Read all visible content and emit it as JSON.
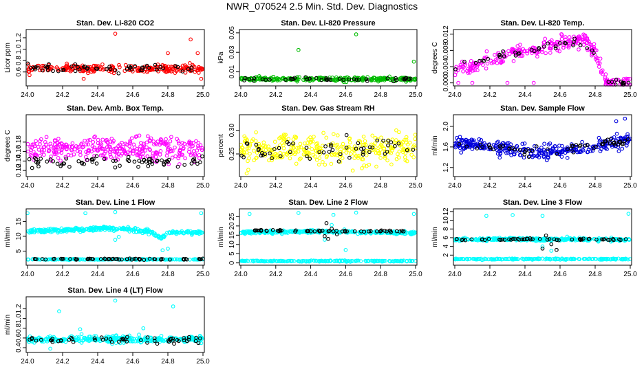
{
  "title": "NWR_070524  2.5 Min. Std. Dev. Diagnostics",
  "chart_data": [
    {
      "type": "scatter",
      "title": "Stan. Dev. Li-820 CO2",
      "ylabel": "Licor ppm",
      "xlabel": "",
      "xlim": [
        24.0,
        25.0
      ],
      "ylim": [
        0.38,
        1.32
      ],
      "xticks": [
        "24.0",
        "24.2",
        "24.4",
        "24.6",
        "24.8",
        "25.0"
      ],
      "yticks": [
        "0.6",
        "0.8",
        "1.0",
        "1.2"
      ],
      "series": [
        {
          "name": "main",
          "color": "#ff0000",
          "base": [
            [
              0,
              0.66
            ],
            [
              1,
              0.66
            ]
          ],
          "spread": 0.06,
          "n": 240,
          "outliers": [
            [
              24.5,
              1.27
            ],
            [
              24.8,
              0.93
            ],
            [
              24.93,
              1.17
            ],
            [
              24.97,
              0.93
            ],
            [
              24.99,
              0.48
            ],
            [
              24.32,
              0.48
            ]
          ]
        },
        {
          "name": "black",
          "color": "#000000",
          "base": [
            [
              0,
              0.66
            ],
            [
              1,
              0.66
            ]
          ],
          "spread": 0.06,
          "n": 55,
          "outliers": []
        }
      ]
    },
    {
      "type": "scatter",
      "title": "Stan. Dev. Li-820 Pressure",
      "ylabel": "kPa",
      "xlabel": "",
      "xlim": [
        24.0,
        25.0
      ],
      "ylim": [
        -0.003,
        0.052
      ],
      "xticks": [
        "24.0",
        "24.2",
        "24.4",
        "24.6",
        "24.8",
        "25.0"
      ],
      "yticks": [
        "0.01",
        "0.03",
        "0.05"
      ],
      "series": [
        {
          "name": "main",
          "color": "#00bb00",
          "base": [
            [
              0,
              0.0025
            ],
            [
              1,
              0.0025
            ]
          ],
          "spread": 0.0018,
          "n": 260,
          "outliers": [
            [
              24.33,
              0.0325
            ],
            [
              24.66,
              0.0485
            ],
            [
              24.99,
              0.0205
            ]
          ]
        },
        {
          "name": "black",
          "color": "#000000",
          "base": [
            [
              0,
              0.0025
            ],
            [
              1,
              0.0025
            ]
          ],
          "spread": 0.0015,
          "n": 45,
          "outliers": []
        }
      ]
    },
    {
      "type": "scatter",
      "title": "Stan. Dev. Li-820 Temp.",
      "ylabel": "degrees C",
      "xlabel": "",
      "xlim": [
        24.0,
        25.0
      ],
      "ylim": [
        -0.0004,
        0.0128
      ],
      "xticks": [
        "24.0",
        "24.2",
        "24.4",
        "24.6",
        "24.8",
        "25.0"
      ],
      "yticks": [
        "0.000",
        "0.004",
        "0.008",
        "0.012"
      ],
      "series": [
        {
          "name": "main",
          "color": "#ff00ff",
          "base": [
            [
              0,
              0.0035
            ],
            [
              0.15,
              0.0045
            ],
            [
              0.3,
              0.0068
            ],
            [
              0.5,
              0.0085
            ],
            [
              0.7,
              0.0108
            ],
            [
              0.76,
              0.0102
            ],
            [
              0.82,
              0.0055
            ],
            [
              0.86,
              0.0
            ],
            [
              1,
              0.0
            ]
          ],
          "spread": 0.0016,
          "n": 280,
          "outliers": [
            [
              24.02,
              0.0
            ],
            [
              24.1,
              0.0
            ],
            [
              24.3,
              0.0
            ],
            [
              24.45,
              0.0
            ]
          ]
        },
        {
          "name": "black",
          "color": "#000000",
          "base": [
            [
              0,
              0.0038
            ],
            [
              0.3,
              0.007
            ],
            [
              0.5,
              0.0085
            ],
            [
              0.7,
              0.0105
            ],
            [
              0.8,
              0.007
            ],
            [
              0.86,
              0.0
            ],
            [
              1,
              0.0
            ]
          ],
          "spread": 0.001,
          "n": 45,
          "outliers": []
        }
      ]
    },
    {
      "type": "scatter",
      "title": "Stan. Dev. Amb. Box Temp.",
      "ylabel": "degrees C",
      "xlabel": "",
      "xlim": [
        24.0,
        25.0
      ],
      "ylim": [
        0.11,
        0.235
      ],
      "xticks": [
        "24.0",
        "24.2",
        "24.4",
        "24.6",
        "24.8",
        "25.0"
      ],
      "yticks": [
        "0.12",
        "0.14",
        "0.16",
        "0.18"
      ],
      "series": [
        {
          "name": "main",
          "color": "#ff00ff",
          "base": [
            [
              0,
              0.165
            ],
            [
              1,
              0.165
            ]
          ],
          "spread": 0.022,
          "n": 320,
          "outliers": []
        },
        {
          "name": "black",
          "color": "#000000",
          "base": [
            [
              0,
              0.138
            ],
            [
              1,
              0.138
            ]
          ],
          "spread": 0.01,
          "n": 70,
          "outliers": []
        }
      ]
    },
    {
      "type": "scatter",
      "title": "Stan. Dev. Gas Stream RH",
      "ylabel": "percent",
      "xlabel": "",
      "xlim": [
        24.0,
        25.0
      ],
      "ylim": [
        0.205,
        0.33
      ],
      "xticks": [
        "24.0",
        "24.2",
        "24.4",
        "24.6",
        "24.8",
        "25.0"
      ],
      "yticks": [
        "0.25",
        "0.30"
      ],
      "series": [
        {
          "name": "main",
          "color": "#ffff00",
          "base": [
            [
              0,
              0.26
            ],
            [
              1,
              0.26
            ]
          ],
          "spread": 0.028,
          "n": 320,
          "outliers": []
        },
        {
          "name": "black",
          "color": "#000000",
          "base": [
            [
              0,
              0.26
            ],
            [
              1,
              0.26
            ]
          ],
          "spread": 0.02,
          "n": 55,
          "outliers": []
        }
      ]
    },
    {
      "type": "scatter",
      "title": "Stan. Dev. Sample Flow",
      "ylabel": "ml/min",
      "xlabel": "",
      "xlim": [
        24.0,
        25.0
      ],
      "ylim": [
        1.05,
        2.2
      ],
      "xticks": [
        "24.0",
        "24.2",
        "24.4",
        "24.6",
        "24.8",
        "25.0"
      ],
      "yticks": [
        "1.2",
        "1.6",
        "2.0"
      ],
      "series": [
        {
          "name": "main",
          "color": "#0000dd",
          "base": [
            [
              0,
              1.68
            ],
            [
              0.3,
              1.55
            ],
            [
              0.5,
              1.48
            ],
            [
              0.7,
              1.55
            ],
            [
              1,
              1.72
            ]
          ],
          "spread": 0.13,
          "n": 320,
          "outliers": [
            [
              24.92,
              2.1
            ],
            [
              24.97,
              2.15
            ]
          ]
        },
        {
          "name": "black",
          "color": "#000000",
          "base": [
            [
              0,
              1.65
            ],
            [
              0.5,
              1.5
            ],
            [
              1,
              1.72
            ]
          ],
          "spread": 0.07,
          "n": 55,
          "outliers": []
        }
      ]
    },
    {
      "type": "scatter",
      "title": "Stan. Dev. Line 1 Flow",
      "ylabel": "ml/min",
      "xlabel": "",
      "xlim": [
        24.0,
        25.0
      ],
      "ylim": [
        0.7,
        18.8
      ],
      "xticks": [
        "24.0",
        "24.2",
        "24.4",
        "24.6",
        "24.8",
        "25.0"
      ],
      "yticks": [
        "5",
        "10",
        "15"
      ],
      "series": [
        {
          "name": "main",
          "color": "#00ffff",
          "base": [
            [
              0,
              11.8
            ],
            [
              0.3,
              12.2
            ],
            [
              0.45,
              12.8
            ],
            [
              0.55,
              12.3
            ],
            [
              0.7,
              11.6
            ],
            [
              0.76,
              9.3
            ],
            [
              0.8,
              11.3
            ],
            [
              1,
              11.3
            ]
          ],
          "spread": 0.55,
          "n": 340,
          "outliers": [
            [
              24.0,
              17.8
            ],
            [
              24.33,
              17.8
            ],
            [
              24.5,
              18.2
            ],
            [
              24.99,
              17.8
            ],
            [
              24.5,
              8.8
            ],
            [
              24.52,
              9.8
            ],
            [
              24.77,
              5.3
            ],
            [
              24.8,
              5.8
            ]
          ]
        },
        {
          "name": "low",
          "color": "#00ffff",
          "base": [
            [
              0,
              2.2
            ],
            [
              1,
              2.2
            ]
          ],
          "spread": 0.12,
          "n": 200,
          "outliers": []
        },
        {
          "name": "black",
          "color": "#000000",
          "base": [
            [
              0,
              2.3
            ],
            [
              1,
              2.3
            ]
          ],
          "spread": 0.15,
          "n": 60,
          "outliers": []
        }
      ]
    },
    {
      "type": "scatter",
      "title": "Stan. Dev. Line 2 Flow",
      "ylabel": "ml/min",
      "xlabel": "",
      "xlim": [
        24.0,
        25.0
      ],
      "ylim": [
        -0.5,
        28.5
      ],
      "xticks": [
        "24.0",
        "24.2",
        "24.4",
        "24.6",
        "24.8",
        "25.0"
      ],
      "yticks": [
        "0",
        "5",
        "10",
        "15",
        "20",
        "25"
      ],
      "series": [
        {
          "name": "main",
          "color": "#00ffff",
          "base": [
            [
              0,
              16.5
            ],
            [
              0.45,
              17.0
            ],
            [
              0.55,
              16.8
            ],
            [
              1,
              16.2
            ]
          ],
          "spread": 0.7,
          "n": 320,
          "outliers": [
            [
              24.05,
              26.5
            ],
            [
              24.33,
              27.0
            ],
            [
              24.53,
              26.0
            ],
            [
              24.66,
              27.2
            ],
            [
              24.99,
              26.5
            ],
            [
              24.6,
              7.0
            ],
            [
              24.48,
              12.5
            ],
            [
              24.52,
              20.5
            ]
          ]
        },
        {
          "name": "low",
          "color": "#00ffff",
          "base": [
            [
              0,
              1.0
            ],
            [
              1,
              1.0
            ]
          ],
          "spread": 0.25,
          "n": 200,
          "outliers": []
        },
        {
          "name": "black",
          "color": "#000000",
          "base": [
            [
              0,
              17.5
            ],
            [
              1,
              17.0
            ]
          ],
          "spread": 0.4,
          "n": 55,
          "outliers": [
            [
              24.48,
              14.5
            ],
            [
              24.49,
              21.5
            ],
            [
              24.5,
              13.0
            ],
            [
              24.52,
              18.5
            ],
            [
              24.55,
              15.5
            ]
          ]
        }
      ]
    },
    {
      "type": "scatter",
      "title": "Stan. Dev. Line 3 Flow",
      "ylabel": "ml/min",
      "xlabel": "",
      "xlim": [
        24.0,
        25.0
      ],
      "ylim": [
        0.0,
        12.3
      ],
      "xticks": [
        "24.0",
        "24.2",
        "24.4",
        "24.6",
        "24.8",
        "25.0"
      ],
      "yticks": [
        "2",
        "4",
        "6",
        "8",
        "10",
        "12"
      ],
      "series": [
        {
          "name": "main",
          "color": "#00ffff",
          "base": [
            [
              0,
              5.6
            ],
            [
              1,
              5.6
            ]
          ],
          "spread": 0.3,
          "n": 320,
          "outliers": [
            [
              24.18,
              11.0
            ],
            [
              24.33,
              11.2
            ],
            [
              24.5,
              11.0
            ],
            [
              24.99,
              11.5
            ],
            [
              24.5,
              4.0
            ],
            [
              24.55,
              3.0
            ]
          ]
        },
        {
          "name": "low",
          "color": "#00ffff",
          "base": [
            [
              0,
              1.1
            ],
            [
              1,
              1.1
            ]
          ],
          "spread": 0.12,
          "n": 200,
          "outliers": []
        },
        {
          "name": "black",
          "color": "#000000",
          "base": [
            [
              0,
              5.6
            ],
            [
              1,
              5.6
            ]
          ],
          "spread": 0.2,
          "n": 55,
          "outliers": [
            [
              24.5,
              3.5
            ],
            [
              24.52,
              6.5
            ],
            [
              24.55,
              4.5
            ],
            [
              24.58,
              3.2
            ]
          ]
        }
      ]
    },
    {
      "type": "scatter",
      "title": "Stan. Dev. Line 4 (LT) Flow",
      "ylabel": "ml/min",
      "xlabel": "",
      "xlim": [
        24.0,
        25.0
      ],
      "ylim": [
        0.33,
        1.42
      ],
      "xticks": [
        "24.0",
        "24.2",
        "24.4",
        "24.6",
        "24.8",
        "25.0"
      ],
      "yticks": [
        "0.4",
        "0.6",
        "0.8",
        "1.0",
        "1.2"
      ],
      "series": [
        {
          "name": "main",
          "color": "#00ffff",
          "base": [
            [
              0,
              0.57
            ],
            [
              1,
              0.57
            ]
          ],
          "spread": 0.06,
          "n": 340,
          "outliers": [
            [
              24.18,
              1.15
            ],
            [
              24.5,
              1.37
            ],
            [
              24.83,
              1.25
            ],
            [
              24.66,
              0.8
            ],
            [
              24.3,
              0.78
            ],
            [
              24.13,
              0.38
            ]
          ]
        },
        {
          "name": "black",
          "color": "#000000",
          "base": [
            [
              0,
              0.56
            ],
            [
              1,
              0.56
            ]
          ],
          "spread": 0.06,
          "n": 55,
          "outliers": []
        }
      ]
    }
  ]
}
